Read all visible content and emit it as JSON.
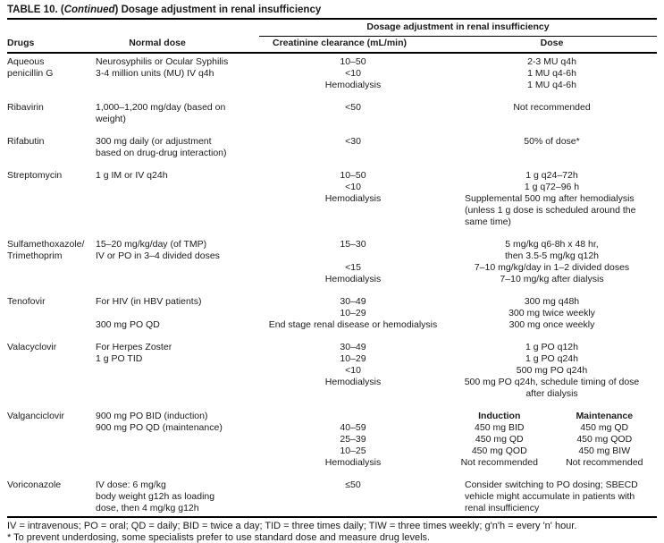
{
  "title": {
    "pre": "TABLE 10. (",
    "continued": "Continued",
    "post": ") Dosage adjustment in renal insufficiency"
  },
  "header": {
    "span_label": "Dosage adjustment in renal insufficiency",
    "col_drugs": "Drugs",
    "col_normal_dose": "Normal dose",
    "col_creatinine": "Creatinine clearance (mL/min)",
    "col_dose": "Dose"
  },
  "rows": [
    {
      "drug_name": "Aqueous penicillin G",
      "lines": [
        {
          "drug": "Aqueous",
          "normal": "Neurosyphilis or Ocular Syphilis",
          "cc": "10–50",
          "dose": "2-3 MU q4h"
        },
        {
          "drug": "penicillin G",
          "normal": "3-4 million units (MU) IV q4h",
          "cc": "<10",
          "dose": "1 MU q4-6h"
        },
        {
          "cc": "Hemodialysis",
          "dose": "1 MU q4-6h"
        }
      ]
    },
    {
      "drug_name": "Ribavirin",
      "lines": [
        {
          "drug": "Ribavirin",
          "normal": "1,000–1,200 mg/day (based on",
          "cc": "<50",
          "dose": "Not recommended"
        },
        {
          "normal": "weight)"
        }
      ]
    },
    {
      "drug_name": "Rifabutin",
      "lines": [
        {
          "drug": "Rifabutin",
          "normal": "300 mg daily (or adjustment",
          "cc": "<30",
          "dose": "50% of dose*"
        },
        {
          "normal": "based on drug-drug interaction)"
        }
      ]
    },
    {
      "drug_name": "Streptomycin",
      "lines": [
        {
          "drug": "Streptomycin",
          "normal": "1 g IM or IV q24h",
          "cc": "10–50",
          "dose": "1 g q24–72h"
        },
        {
          "cc": "<10",
          "dose": "1 g q72–96 h"
        },
        {
          "cc": "Hemodialysis",
          "dose": "Supplemental 500 mg after hemodialysis",
          "dose_align": "left"
        },
        {
          "dose": "(unless 1 g dose is scheduled around the",
          "dose_align": "left"
        },
        {
          "dose": "same time)",
          "dose_align": "left"
        }
      ]
    },
    {
      "drug_name": "Sulfamethoxazole/Trimethoprim",
      "lines": [
        {
          "drug": "Sulfamethoxazole/",
          "normal": "15–20 mg/kg/day (of TMP)",
          "cc": "15–30",
          "dose": "5 mg/kg q6-8h x 48 hr,"
        },
        {
          "drug": "Trimethoprim",
          "normal": "IV or PO in 3–4 divided doses",
          "dose": "then 3.5-5 mg/kg q12h"
        },
        {
          "cc": "<15",
          "dose": "7–10 mg/kg/day in 1–2 divided doses"
        },
        {
          "cc": "Hemodialysis",
          "dose": "7–10 mg/kg after dialysis"
        }
      ]
    },
    {
      "drug_name": "Tenofovir",
      "lines": [
        {
          "drug": "Tenofovir",
          "normal": "For HIV (in HBV patients)",
          "cc": "30–49",
          "dose": "300 mg q48h"
        },
        {
          "cc": "10–29",
          "dose": "300 mg twice weekly"
        },
        {
          "normal": "300 mg PO QD",
          "cc": "End stage renal disease or hemodialysis",
          "dose": "300 mg once weekly"
        }
      ]
    },
    {
      "drug_name": "Valacyclovir",
      "lines": [
        {
          "drug": "Valacyclovir",
          "normal": "For Herpes Zoster",
          "cc": "30–49",
          "dose": "1 g PO q12h"
        },
        {
          "normal": "1 g PO TID",
          "cc": "10–29",
          "dose": "1 g PO q24h"
        },
        {
          "cc": "<10",
          "dose": "500 mg PO q24h"
        },
        {
          "cc": "Hemodialysis",
          "dose": "500 mg PO q24h, schedule timing of dose"
        },
        {
          "dose": "after dialysis"
        }
      ]
    },
    {
      "drug_name": "Valganciclovir",
      "lines": [
        {
          "drug": "Valganciclovir",
          "normal": "900 mg PO BID (induction)",
          "dose_induction": "Induction",
          "dose_maintenance": "Maintenance",
          "bold": true
        },
        {
          "normal": "900 mg PO QD (maintenance)",
          "cc": "40–59",
          "dose_induction": "450 mg BID",
          "dose_maintenance": "450 mg QD"
        },
        {
          "cc": "25–39",
          "dose_induction": "450 mg QD",
          "dose_maintenance": "450 mg QOD"
        },
        {
          "cc": "10–25",
          "dose_induction": "450 mg QOD",
          "dose_maintenance": "450 mg BIW"
        },
        {
          "cc": "Hemodialysis",
          "dose_induction": "Not recommended",
          "dose_maintenance": "Not recommended"
        }
      ]
    },
    {
      "drug_name": "Voriconazole",
      "lines": [
        {
          "drug": "Voriconazole",
          "normal": "IV dose: 6 mg/kg",
          "cc": "≤50",
          "dose": "Consider switching to PO dosing; SBECD",
          "dose_align": "left"
        },
        {
          "normal": "body weight g12h as loading",
          "dose": "vehicle might accumulate in patients with",
          "dose_align": "left"
        },
        {
          "normal": "dose, then 4 mg/kg g12h",
          "dose": "renal insufficiency",
          "dose_align": "left"
        }
      ]
    }
  ],
  "footnotes": [
    "IV = intravenous; PO = oral; QD = daily; BID = twice a day; TID = three times daily; TIW = three times weekly; g'n'h = every 'n' hour.",
    "* To prevent underdosing, some specialists prefer to use standard dose and measure drug levels."
  ]
}
